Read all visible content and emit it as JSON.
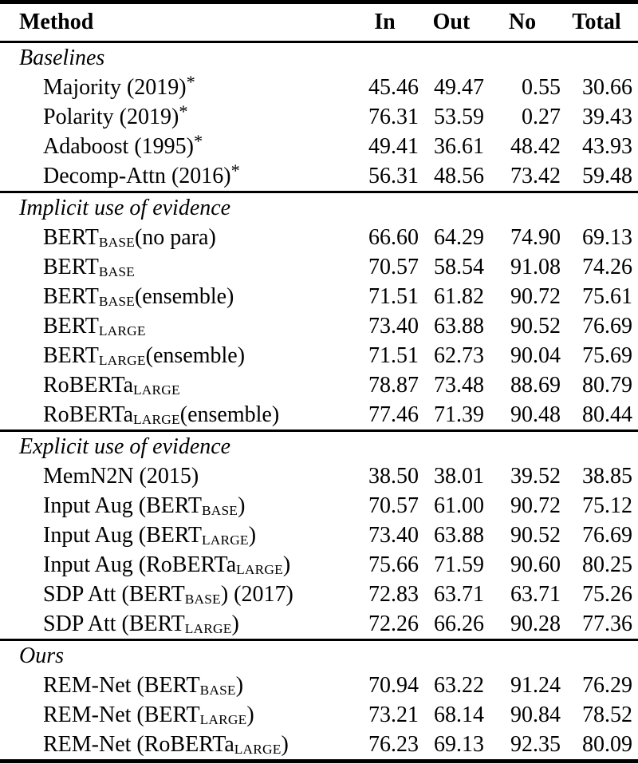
{
  "header": {
    "method": "Method",
    "cols": [
      "In",
      "Out",
      "No",
      "Total"
    ]
  },
  "sections": [
    {
      "title": "Baselines",
      "rows": [
        {
          "label": [
            "Majority (2019)",
            {
              "sup": "*"
            }
          ],
          "values": [
            "45.46",
            "49.47",
            "0.55",
            "30.66"
          ]
        },
        {
          "label": [
            "Polarity (2019)",
            {
              "sup": "*"
            }
          ],
          "values": [
            "76.31",
            "53.59",
            "0.27",
            "39.43"
          ]
        },
        {
          "label": [
            "Adaboost (1995)",
            {
              "sup": "*"
            }
          ],
          "values": [
            "49.41",
            "36.61",
            "48.42",
            "43.93"
          ]
        },
        {
          "label": [
            "Decomp-Attn (2016)",
            {
              "sup": "*"
            }
          ],
          "values": [
            "56.31",
            "48.56",
            "73.42",
            "59.48"
          ]
        }
      ]
    },
    {
      "title": "Implicit use of evidence",
      "rows": [
        {
          "label": [
            "BERT",
            {
              "sub": "BASE"
            },
            "(no para)"
          ],
          "values": [
            "66.60",
            "64.29",
            "74.90",
            "69.13"
          ]
        },
        {
          "label": [
            "BERT",
            {
              "sub": "BASE"
            }
          ],
          "values": [
            "70.57",
            "58.54",
            "91.08",
            "74.26"
          ]
        },
        {
          "label": [
            "BERT",
            {
              "sub": "BASE"
            },
            "(ensemble)"
          ],
          "values": [
            "71.51",
            "61.82",
            "90.72",
            "75.61"
          ]
        },
        {
          "label": [
            "BERT",
            {
              "sub": "LARGE"
            }
          ],
          "values": [
            "73.40",
            "63.88",
            "90.52",
            "76.69"
          ]
        },
        {
          "label": [
            "BERT",
            {
              "sub": "LARGE"
            },
            "(ensemble)"
          ],
          "values": [
            "71.51",
            "62.73",
            "90.04",
            "75.69"
          ]
        },
        {
          "label": [
            "RoBERTa",
            {
              "sub": "LARGE"
            }
          ],
          "values": [
            "78.87",
            "73.48",
            "88.69",
            "80.79"
          ]
        },
        {
          "label": [
            "RoBERTa",
            {
              "sub": "LARGE"
            },
            "(ensemble)"
          ],
          "values": [
            "77.46",
            "71.39",
            "90.48",
            "80.44"
          ]
        }
      ]
    },
    {
      "title": "Explicit use of evidence",
      "rows": [
        {
          "label": [
            "MemN2N (2015)"
          ],
          "values": [
            "38.50",
            "38.01",
            "39.52",
            "38.85"
          ]
        },
        {
          "label": [
            "Input Aug (BERT",
            {
              "sub": "BASE"
            },
            ")"
          ],
          "values": [
            "70.57",
            "61.00",
            "90.72",
            "75.12"
          ]
        },
        {
          "label": [
            "Input Aug (BERT",
            {
              "sub": "LARGE"
            },
            ")"
          ],
          "values": [
            "73.40",
            "63.88",
            "90.52",
            "76.69"
          ]
        },
        {
          "label": [
            "Input Aug (RoBERTa",
            {
              "sub": "LARGE"
            },
            ")"
          ],
          "values": [
            "75.66",
            "71.59",
            "90.60",
            "80.25"
          ]
        },
        {
          "label": [
            "SDP Att (BERT",
            {
              "sub": "BASE"
            },
            ") (2017)"
          ],
          "values": [
            "72.83",
            "63.71",
            "63.71",
            "75.26"
          ]
        },
        {
          "label": [
            "SDP Att (BERT",
            {
              "sub": "LARGE"
            },
            ")"
          ],
          "values": [
            "72.26",
            "66.26",
            "90.28",
            "77.36"
          ]
        }
      ]
    },
    {
      "title": "Ours",
      "rows": [
        {
          "label": [
            "REM-Net (BERT",
            {
              "sub": "BASE"
            },
            ")"
          ],
          "values": [
            "70.94",
            "63.22",
            "91.24",
            "76.29"
          ]
        },
        {
          "label": [
            "REM-Net (BERT",
            {
              "sub": "LARGE"
            },
            ")"
          ],
          "values": [
            "73.21",
            "68.14",
            "90.84",
            "78.52"
          ]
        },
        {
          "label": [
            "REM-Net (RoBERTa",
            {
              "sub": "LARGE"
            },
            ")"
          ],
          "values": [
            "76.23",
            "69.13",
            "92.35",
            "80.09"
          ]
        }
      ]
    }
  ]
}
